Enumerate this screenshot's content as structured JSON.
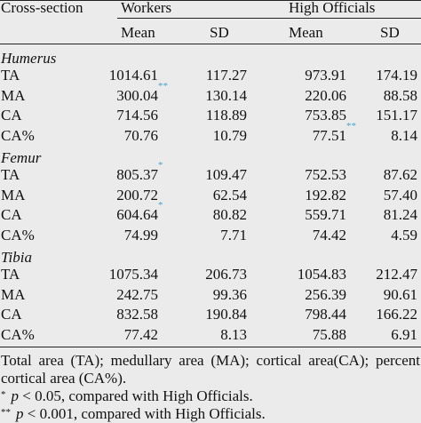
{
  "table": {
    "header": {
      "cross_section": "Cross-section",
      "workers": "Workers",
      "high_officials": "High Officials",
      "mean": "Mean",
      "sd": "SD"
    },
    "sections": [
      {
        "name": "Humerus",
        "rows": [
          {
            "label": "TA",
            "w_mean": "1014.61",
            "w_mean_mark": "",
            "w_sd": "117.27",
            "h_mean": "973.91",
            "h_mean_mark": "",
            "h_sd": "174.19"
          },
          {
            "label": "MA",
            "w_mean": "300.04",
            "w_mean_mark": "**",
            "w_sd": "130.14",
            "h_mean": "220.06",
            "h_mean_mark": "",
            "h_sd": "88.58"
          },
          {
            "label": "CA",
            "w_mean": "714.56",
            "w_mean_mark": "",
            "w_sd": "118.89",
            "h_mean": "753.85",
            "h_mean_mark": "",
            "h_sd": "151.17"
          },
          {
            "label": "CA%",
            "w_mean": "70.76",
            "w_mean_mark": "",
            "w_sd": "10.79",
            "h_mean": "77.51",
            "h_mean_mark": "**",
            "h_sd": "8.14"
          }
        ]
      },
      {
        "name": "Femur",
        "rows": [
          {
            "label": "TA",
            "w_mean": "805.37",
            "w_mean_mark": "*",
            "w_sd": "109.47",
            "h_mean": "752.53",
            "h_mean_mark": "",
            "h_sd": "87.62"
          },
          {
            "label": "MA",
            "w_mean": "200.72",
            "w_mean_mark": "",
            "w_sd": "62.54",
            "h_mean": "192.82",
            "h_mean_mark": "",
            "h_sd": "57.40"
          },
          {
            "label": "CA",
            "w_mean": "604.64",
            "w_mean_mark": "*",
            "w_sd": "80.82",
            "h_mean": "559.71",
            "h_mean_mark": "",
            "h_sd": "81.24"
          },
          {
            "label": "CA%",
            "w_mean": "74.99",
            "w_mean_mark": "",
            "w_sd": "7.71",
            "h_mean": "74.42",
            "h_mean_mark": "",
            "h_sd": "4.59"
          }
        ]
      },
      {
        "name": "Tibia",
        "rows": [
          {
            "label": "TA",
            "w_mean": "1075.34",
            "w_mean_mark": "",
            "w_sd": "206.73",
            "h_mean": "1054.83",
            "h_mean_mark": "",
            "h_sd": "212.47"
          },
          {
            "label": "MA",
            "w_mean": "242.75",
            "w_mean_mark": "",
            "w_sd": "99.36",
            "h_mean": "256.39",
            "h_mean_mark": "",
            "h_sd": "90.61"
          },
          {
            "label": "CA",
            "w_mean": "832.58",
            "w_mean_mark": "",
            "w_sd": "190.84",
            "h_mean": "798.44",
            "h_mean_mark": "",
            "h_sd": "166.22"
          },
          {
            "label": "CA%",
            "w_mean": "77.42",
            "w_mean_mark": "",
            "w_sd": "8.13",
            "h_mean": "75.88",
            "h_mean_mark": "",
            "h_sd": "6.91"
          }
        ]
      }
    ],
    "notes": {
      "abbreviations": "Total area (TA); medullary area (MA); cortical area(CA); percent cortical area (CA%).",
      "footnotes": [
        {
          "mark": "*",
          "p": "p",
          "text": "< 0.05, compared with High Officials."
        },
        {
          "mark": "**",
          "p": "p",
          "text": "< 0.001, compared with High Officials."
        }
      ]
    }
  }
}
